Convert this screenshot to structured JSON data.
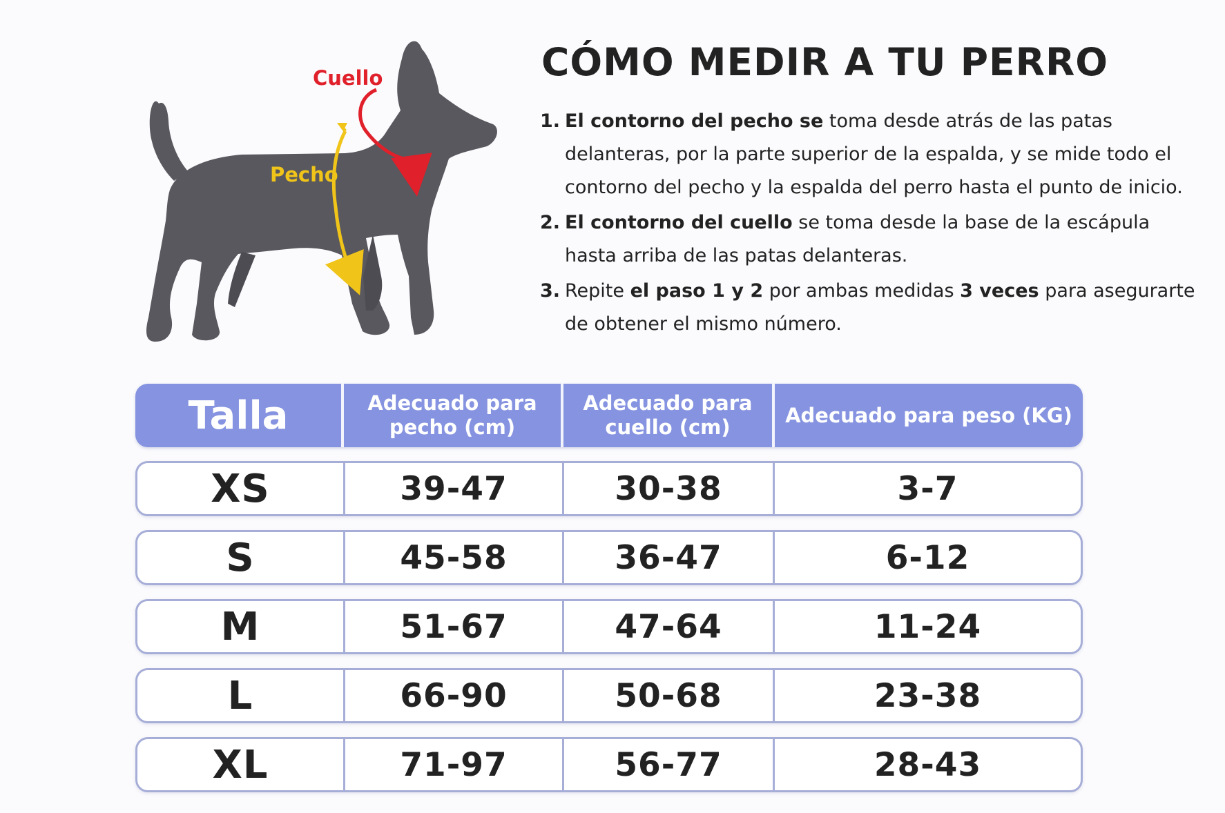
{
  "title": "CÓMO MEDIR A TU PERRO",
  "diagram": {
    "neck_label": "Cuello",
    "chest_label": "Pecho",
    "icons": [
      "dog-silhouette-icon",
      "neck-measure-loop-icon",
      "chest-measure-arrow-icon"
    ],
    "colors": {
      "dog": "#58585e",
      "neck": "#e0202a",
      "chest": "#f0c419"
    }
  },
  "steps": [
    {
      "number": "1.",
      "parts": [
        {
          "text": "El contorno del pecho",
          "bold": true
        },
        {
          "text": " se",
          "bold": true
        },
        {
          "text": " toma desde atrás de las patas delanteras, por la parte superior de la espalda, y se mide todo el contorno del pecho y la espalda del perro hasta el punto de inicio.",
          "bold": false
        }
      ]
    },
    {
      "number": "2.",
      "parts": [
        {
          "text": "El contorno del cuello",
          "bold": true
        },
        {
          "text": " se toma desde la base de la escápula hasta arriba de las patas delanteras.",
          "bold": false
        }
      ]
    },
    {
      "number": "3.",
      "parts": [
        {
          "text": "Repite ",
          "bold": false
        },
        {
          "text": "el paso 1 y 2",
          "bold": true
        },
        {
          "text": " por ambas medidas ",
          "bold": false
        },
        {
          "text": "3 veces",
          "bold": true
        },
        {
          "text": " para asegurarte de obtener el mismo número.",
          "bold": false
        }
      ]
    }
  ],
  "table": {
    "headers": [
      "Talla",
      "Adecuado para pecho (cm)",
      "Adecuado para cuello (cm)",
      "Adecuado para peso (KG)"
    ],
    "rows": [
      [
        "XS",
        "39-47",
        "30-38",
        "3-7"
      ],
      [
        "S",
        "45-58",
        "36-47",
        "6-12"
      ],
      [
        "M",
        "51-67",
        "47-64",
        "11-24"
      ],
      [
        "L",
        "66-90",
        "50-68",
        "23-38"
      ],
      [
        "XL",
        "71-97",
        "56-77",
        "28-43"
      ]
    ],
    "colors": {
      "header_bg": "#8593e0",
      "row_border": "#a6aed8"
    }
  }
}
